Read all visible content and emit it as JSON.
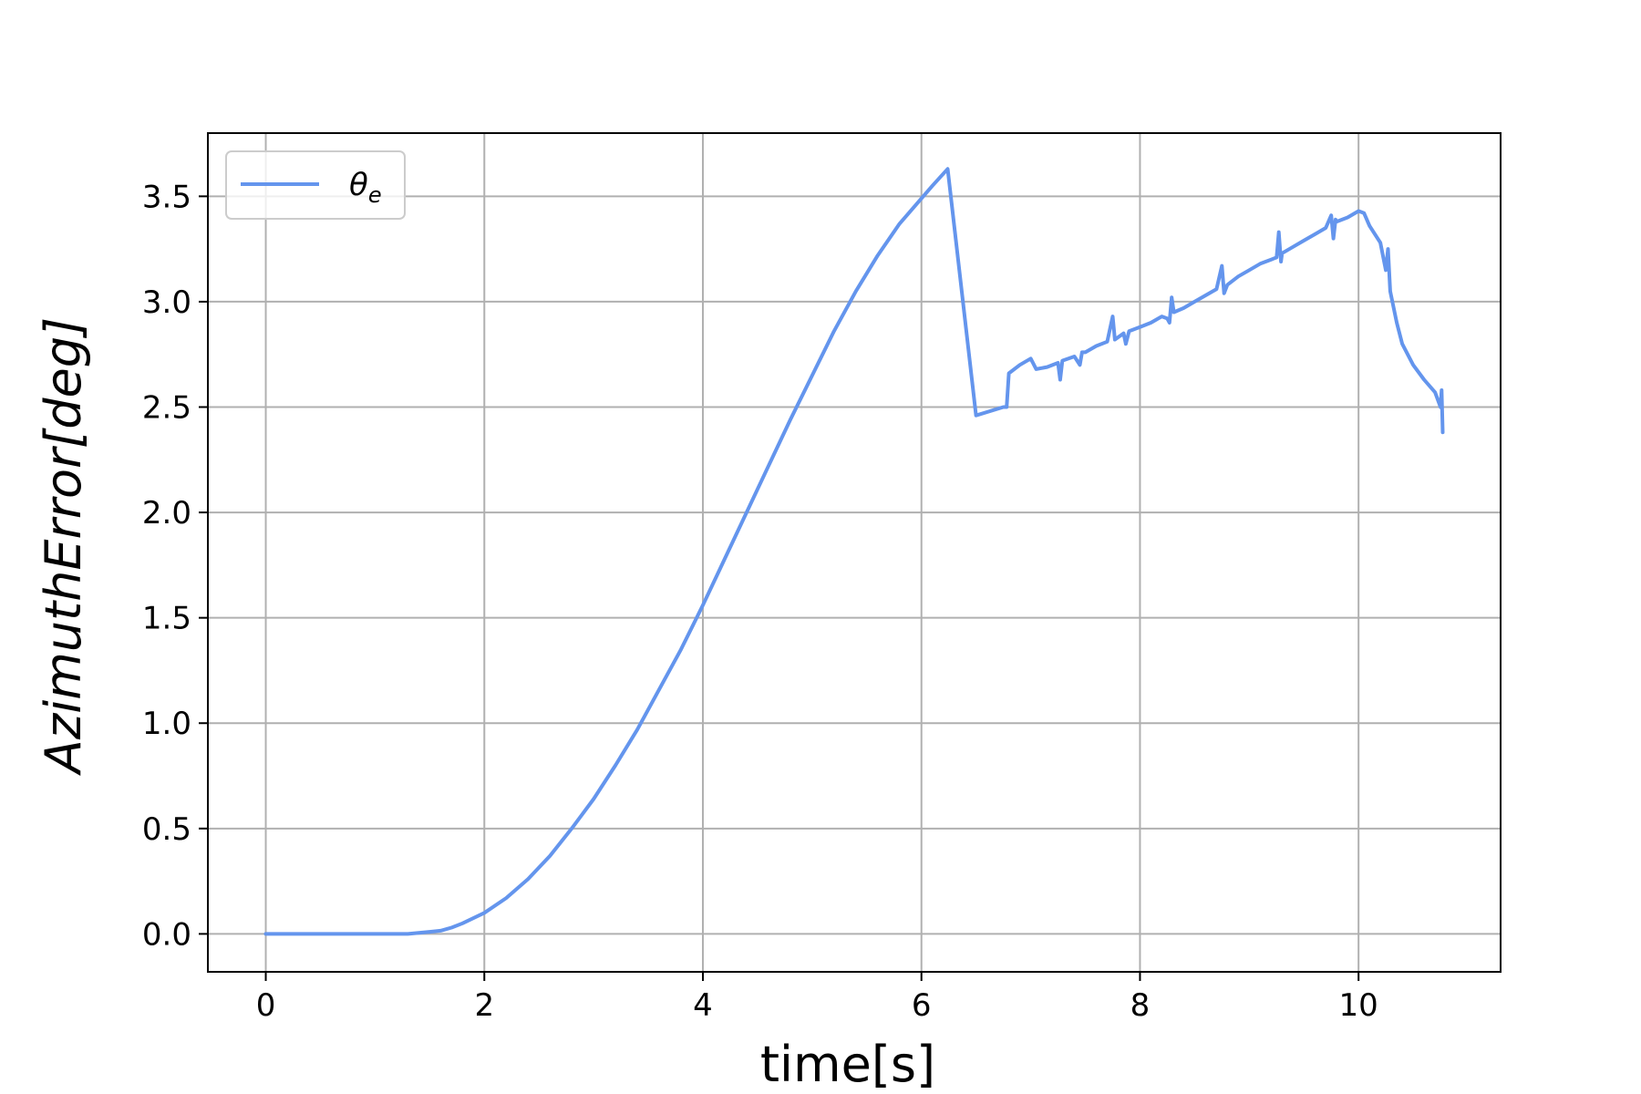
{
  "chart_data": {
    "type": "line",
    "title": "",
    "xlabel": "time[s]",
    "ylabel": "AzimuthError[deg]",
    "xlim": [
      -0.53,
      11.3
    ],
    "ylim": [
      -0.18,
      3.8
    ],
    "xticks": [
      0,
      2,
      4,
      6,
      8,
      10
    ],
    "xtick_labels": [
      "0",
      "2",
      "4",
      "6",
      "8",
      "10"
    ],
    "yticks": [
      0.0,
      0.5,
      1.0,
      1.5,
      2.0,
      2.5,
      3.0,
      3.5
    ],
    "ytick_labels": [
      "0.0",
      "0.5",
      "1.0",
      "1.5",
      "2.0",
      "2.5",
      "3.0",
      "3.5"
    ],
    "grid": true,
    "legend": {
      "position": "top-left"
    },
    "series": [
      {
        "name": "θe",
        "name_main": "θ",
        "name_sub": "e",
        "color": "#6495ED",
        "points": [
          [
            0,
            0.0
          ],
          [
            0.5,
            0.0
          ],
          [
            1.0,
            0.0
          ],
          [
            1.3,
            0.0
          ],
          [
            1.5,
            0.01
          ],
          [
            1.6,
            0.015
          ],
          [
            1.7,
            0.03
          ],
          [
            1.8,
            0.05
          ],
          [
            1.9,
            0.075
          ],
          [
            2.0,
            0.1
          ],
          [
            2.2,
            0.17
          ],
          [
            2.4,
            0.26
          ],
          [
            2.6,
            0.37
          ],
          [
            2.8,
            0.5
          ],
          [
            3.0,
            0.64
          ],
          [
            3.2,
            0.8
          ],
          [
            3.4,
            0.97
          ],
          [
            3.6,
            1.16
          ],
          [
            3.8,
            1.35
          ],
          [
            4.0,
            1.56
          ],
          [
            4.2,
            1.78
          ],
          [
            4.4,
            2.0
          ],
          [
            4.6,
            2.22
          ],
          [
            4.8,
            2.44
          ],
          [
            5.0,
            2.65
          ],
          [
            5.2,
            2.86
          ],
          [
            5.4,
            3.05
          ],
          [
            5.6,
            3.22
          ],
          [
            5.8,
            3.37
          ],
          [
            6.0,
            3.49
          ],
          [
            6.1,
            3.55
          ],
          [
            6.24,
            3.63
          ],
          [
            6.5,
            2.46
          ],
          [
            6.75,
            2.5
          ],
          [
            6.78,
            2.5
          ],
          [
            6.8,
            2.66
          ],
          [
            6.9,
            2.7
          ],
          [
            7.0,
            2.73
          ],
          [
            7.05,
            2.68
          ],
          [
            7.15,
            2.69
          ],
          [
            7.25,
            2.71
          ],
          [
            7.27,
            2.63
          ],
          [
            7.29,
            2.72
          ],
          [
            7.4,
            2.74
          ],
          [
            7.45,
            2.7
          ],
          [
            7.47,
            2.76
          ],
          [
            7.5,
            2.76
          ],
          [
            7.6,
            2.79
          ],
          [
            7.7,
            2.81
          ],
          [
            7.75,
            2.93
          ],
          [
            7.77,
            2.82
          ],
          [
            7.85,
            2.85
          ],
          [
            7.87,
            2.8
          ],
          [
            7.9,
            2.86
          ],
          [
            8.0,
            2.88
          ],
          [
            8.1,
            2.9
          ],
          [
            8.2,
            2.93
          ],
          [
            8.25,
            2.92
          ],
          [
            8.27,
            2.9
          ],
          [
            8.29,
            3.02
          ],
          [
            8.31,
            2.95
          ],
          [
            8.4,
            2.97
          ],
          [
            8.5,
            3.0
          ],
          [
            8.6,
            3.03
          ],
          [
            8.7,
            3.06
          ],
          [
            8.75,
            3.17
          ],
          [
            8.77,
            3.04
          ],
          [
            8.8,
            3.08
          ],
          [
            8.9,
            3.12
          ],
          [
            9.0,
            3.15
          ],
          [
            9.1,
            3.18
          ],
          [
            9.2,
            3.2
          ],
          [
            9.25,
            3.21
          ],
          [
            9.27,
            3.33
          ],
          [
            9.29,
            3.19
          ],
          [
            9.3,
            3.23
          ],
          [
            9.4,
            3.26
          ],
          [
            9.5,
            3.29
          ],
          [
            9.6,
            3.32
          ],
          [
            9.7,
            3.35
          ],
          [
            9.75,
            3.41
          ],
          [
            9.77,
            3.3
          ],
          [
            9.79,
            3.39
          ],
          [
            9.8,
            3.38
          ],
          [
            9.9,
            3.4
          ],
          [
            10.0,
            3.43
          ],
          [
            10.05,
            3.42
          ],
          [
            10.1,
            3.36
          ],
          [
            10.2,
            3.28
          ],
          [
            10.25,
            3.15
          ],
          [
            10.27,
            3.25
          ],
          [
            10.29,
            3.05
          ],
          [
            10.35,
            2.9
          ],
          [
            10.4,
            2.8
          ],
          [
            10.5,
            2.7
          ],
          [
            10.6,
            2.63
          ],
          [
            10.7,
            2.57
          ],
          [
            10.75,
            2.5
          ],
          [
            10.76,
            2.58
          ],
          [
            10.77,
            2.38
          ]
        ]
      }
    ]
  }
}
